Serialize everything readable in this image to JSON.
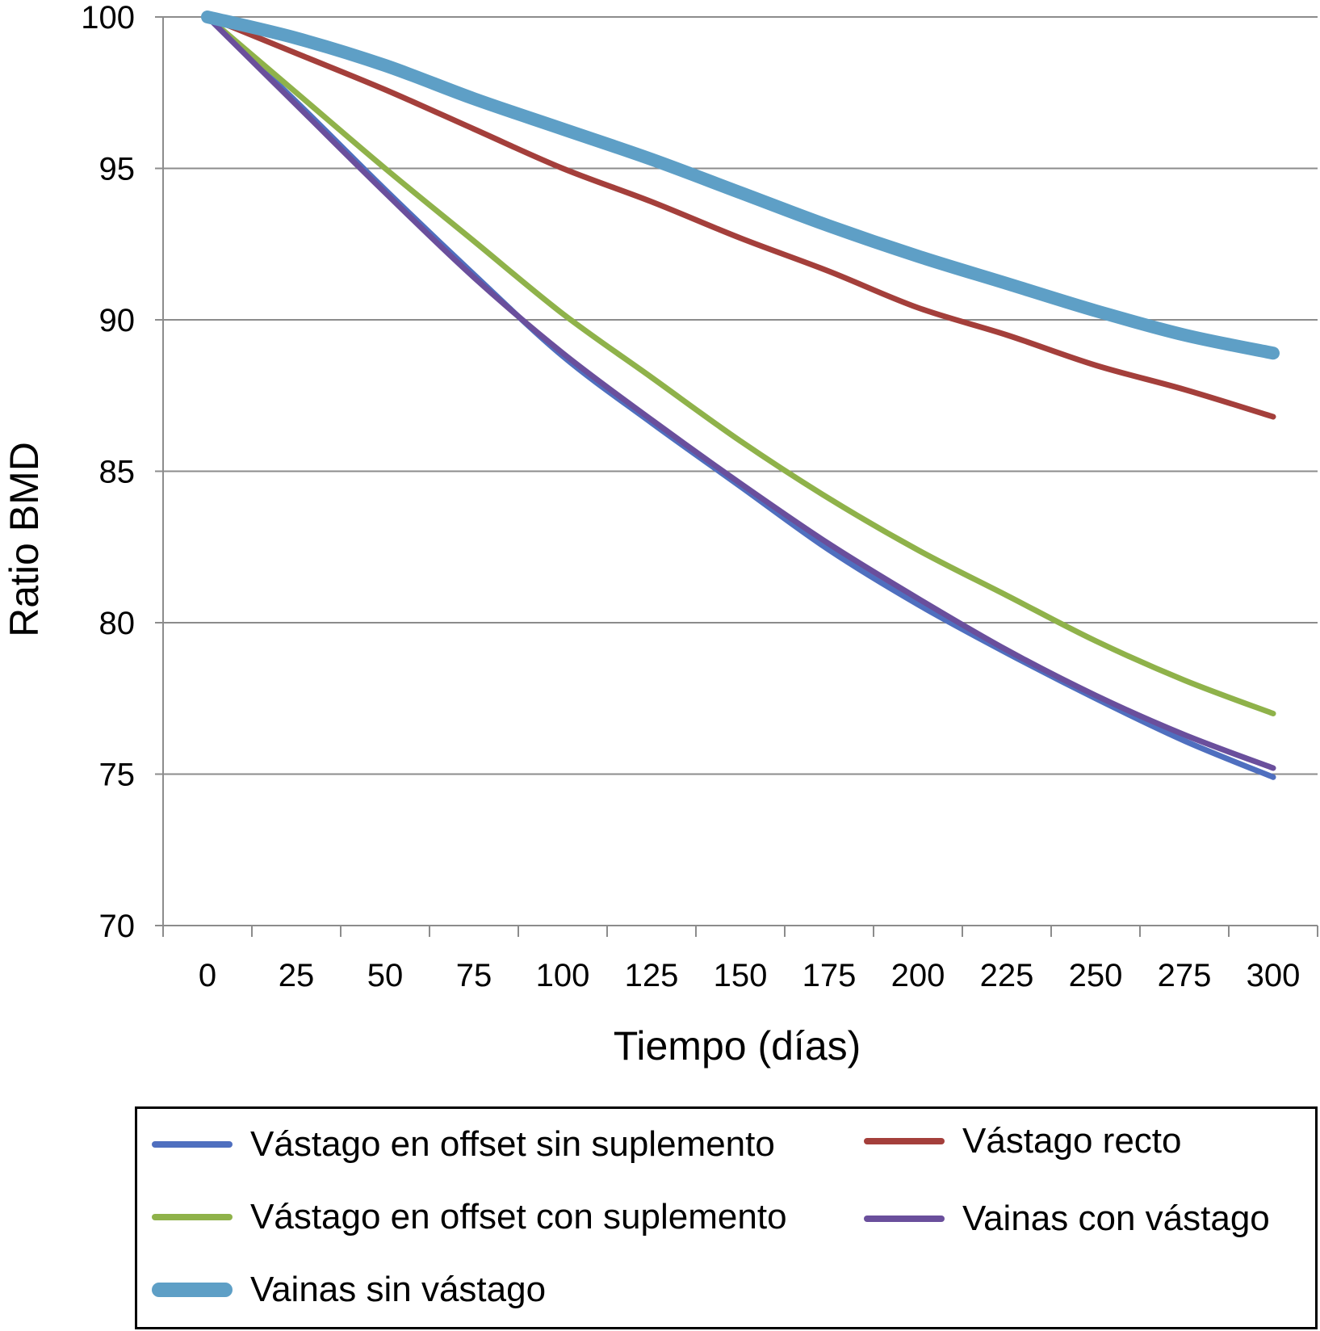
{
  "chart_data": {
    "type": "line",
    "title": "",
    "xlabel": "Tiempo (días)",
    "ylabel": "Ratio BMD",
    "x": [
      0,
      25,
      50,
      75,
      100,
      125,
      150,
      175,
      200,
      225,
      250,
      275,
      300
    ],
    "x_tick_labels": [
      "0",
      "25",
      "50",
      "75",
      "100",
      "125",
      "150",
      "175",
      "200",
      "225",
      "250",
      "275",
      "300"
    ],
    "y_tick_labels": [
      "100",
      "95",
      "90",
      "85",
      "80",
      "75",
      "70"
    ],
    "ylim": [
      70,
      100
    ],
    "yticks": [
      100,
      95,
      90,
      85,
      80,
      75,
      70
    ],
    "grid": true,
    "legend_position": "bottom",
    "series": [
      {
        "name": "Vástago en offset sin suplemento",
        "color": "#4F6FBF",
        "line_weight": "medium",
        "values": [
          100,
          97.2,
          94.3,
          91.5,
          88.8,
          86.6,
          84.5,
          82.4,
          80.6,
          79.0,
          77.5,
          76.1,
          74.9
        ]
      },
      {
        "name": "Vástago recto",
        "color": "#A43F3B",
        "line_weight": "medium",
        "values": [
          100,
          98.8,
          97.6,
          96.3,
          95.0,
          93.9,
          92.7,
          91.6,
          90.4,
          89.5,
          88.5,
          87.7,
          86.8
        ]
      },
      {
        "name": "Vástago en offset con suplemento",
        "color": "#8FB24A",
        "line_weight": "medium",
        "values": [
          100,
          97.5,
          95.0,
          92.6,
          90.2,
          88.1,
          86.0,
          84.1,
          82.4,
          80.9,
          79.4,
          78.1,
          77.0
        ]
      },
      {
        "name": "Vainas con vástago",
        "color": "#6A4F9C",
        "line_weight": "medium",
        "values": [
          100,
          97.1,
          94.2,
          91.4,
          88.9,
          86.7,
          84.6,
          82.6,
          80.8,
          79.1,
          77.6,
          76.3,
          75.2
        ]
      },
      {
        "name": "Vainas sin vástago",
        "color": "#5E9FC6",
        "line_weight": "thick",
        "values": [
          100,
          99.3,
          98.4,
          97.3,
          96.3,
          95.3,
          94.2,
          93.1,
          92.1,
          91.2,
          90.3,
          89.5,
          88.9
        ]
      }
    ]
  }
}
